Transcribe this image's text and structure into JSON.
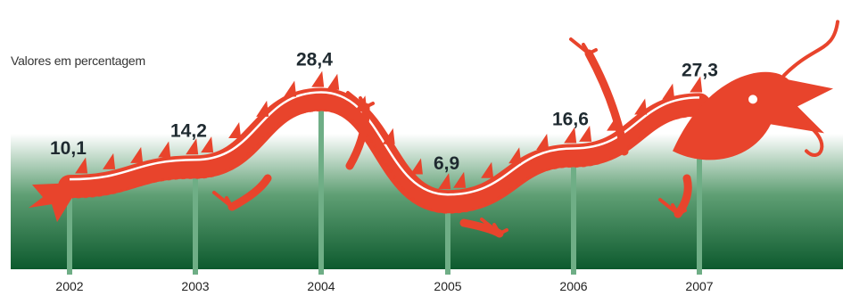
{
  "colors": {
    "dragon": "#e8442c",
    "band_top": "#ffffff",
    "band_mid": "#5f9f74",
    "band_bottom": "#0d5a2e",
    "marker": "#6fae86",
    "value_text": "#1f2a30"
  },
  "chart_data": {
    "type": "line",
    "title": "",
    "subtitle": "Valores em percentagem",
    "xlabel": "",
    "ylabel": "",
    "categories": [
      "2002",
      "2003",
      "2004",
      "2005",
      "2006",
      "2007"
    ],
    "values": [
      10.1,
      14.2,
      28.4,
      6.9,
      16.6,
      27.3
    ],
    "value_labels": [
      "10,1",
      "14,2",
      "28,4",
      "6,9",
      "16,6",
      "27,3"
    ],
    "ylim": [
      0,
      30
    ],
    "grid": false,
    "legend": "none",
    "line_style": "dragon illustration"
  }
}
